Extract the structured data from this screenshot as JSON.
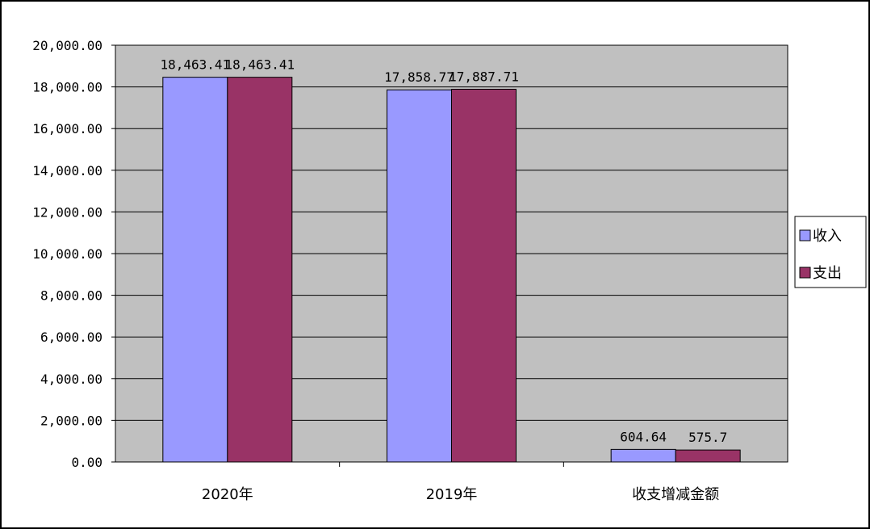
{
  "chart_data": {
    "type": "bar",
    "categories": [
      "2020年",
      "2019年",
      "收支增减金额"
    ],
    "series": [
      {
        "name": "收入",
        "values": [
          18463.41,
          17858.77,
          604.64
        ],
        "labels": [
          "18,463.41",
          "17,858.77",
          "604.64"
        ],
        "color": "#9999ff"
      },
      {
        "name": "支出",
        "values": [
          18463.41,
          17887.71,
          575.7
        ],
        "labels": [
          "18,463.41",
          "17,887.71",
          "575.7"
        ],
        "color": "#993366"
      }
    ],
    "ylim": [
      0,
      20000
    ],
    "yticks": [
      "0.00",
      "2,000.00",
      "4,000.00",
      "6,000.00",
      "8,000.00",
      "10,000.00",
      "12,000.00",
      "14,000.00",
      "16,000.00",
      "18,000.00",
      "20,000.00"
    ],
    "grid": true,
    "plot_background": "#c0c0c0",
    "legend_position": "right"
  }
}
